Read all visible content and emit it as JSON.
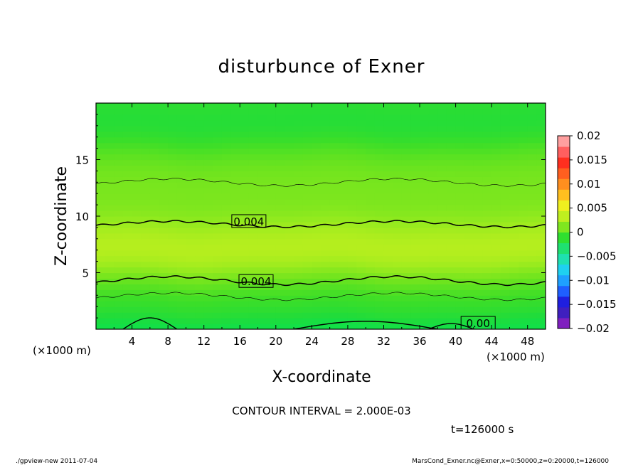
{
  "chart_data": {
    "type": "heatmap",
    "title": "disturbunce of Exner",
    "xlabel": "X-coordinate",
    "ylabel": "Z-coordinate",
    "x_unit": "(×1000 m)",
    "y_unit": "(×1000 m)",
    "xlim": [
      0,
      50
    ],
    "ylim": [
      0,
      20
    ],
    "x_ticks": [
      4,
      8,
      12,
      16,
      20,
      24,
      28,
      32,
      36,
      40,
      44,
      48
    ],
    "y_ticks": [
      5,
      10,
      15
    ],
    "colorbar": {
      "levels": [
        -0.02,
        -0.015,
        -0.01,
        -0.005,
        0,
        0.005,
        0.01,
        0.015,
        0.02
      ],
      "labels": [
        "0.02",
        "0.015",
        "0.01",
        "0.005",
        "0",
        "−0.005",
        "−0.01",
        "−0.015",
        "−0.02"
      ],
      "colors_bottom_to_top": [
        "#7f1fbf",
        "#3f1fbf",
        "#1f1fdf",
        "#1f5fff",
        "#1fa0ff",
        "#1fd0f0",
        "#1fe0b0",
        "#1fe070",
        "#2fdf2f",
        "#7fe71f",
        "#bfef1f",
        "#efef1f",
        "#ffbf1f",
        "#ff8f1f",
        "#ff5f1f",
        "#ff2f1f",
        "#ff5f5f",
        "#ff9f9f"
      ]
    },
    "contour_labels": [
      {
        "text": "0.004",
        "x": 17.0,
        "z": 9.5
      },
      {
        "text": "0.004",
        "x": 17.8,
        "z": 4.2
      },
      {
        "text": "0.00",
        "x": 42.5,
        "z": 0.5
      }
    ],
    "contour_interval_text": "CONTOUR INTERVAL = 2.000E-03"
  },
  "annotations": {
    "time": "t=126000 s",
    "footer_left": "./gpview-new   2011-07-04",
    "footer_right": "MarsCond_Exner.nc@Exner,x=0:50000,z=0:20000,t=126000"
  }
}
